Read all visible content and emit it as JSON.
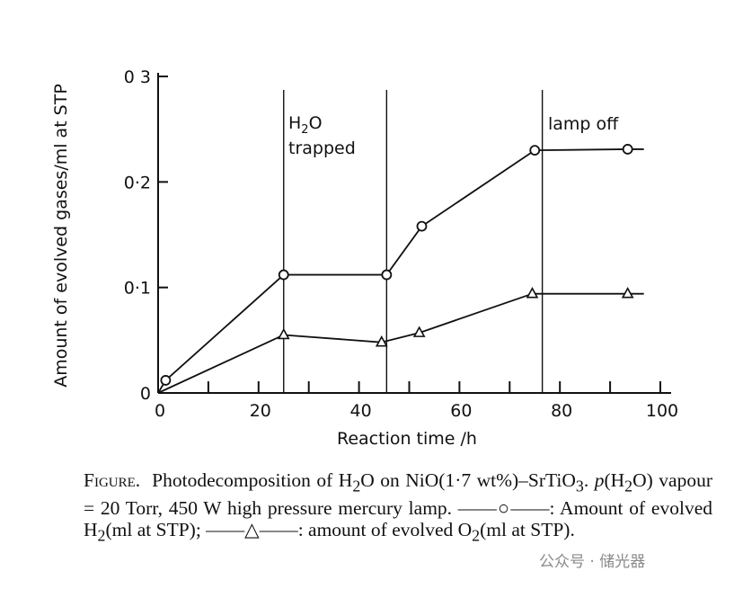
{
  "chart_data": {
    "type": "line",
    "xlabel": "Reaction time /h",
    "ylabel": "Amount of evolved gases/ml at STP",
    "xlim": [
      0,
      100
    ],
    "ylim": [
      0,
      0.3
    ],
    "x_ticks": [
      "0",
      "20",
      "40",
      "60",
      "80",
      "100"
    ],
    "y_ticks": [
      "0",
      "0·1",
      "0·2",
      "0 3"
    ],
    "grid": false,
    "series": [
      {
        "marker": "circle",
        "x": [
          0,
          1.5,
          25,
          45.5,
          52.5,
          75,
          93.5
        ],
        "y": [
          0,
          0.012,
          0.112,
          0.112,
          0.158,
          0.23,
          0.231
        ]
      },
      {
        "marker": "triangle",
        "x": [
          0,
          25,
          44.5,
          52,
          74.5,
          93.5
        ],
        "y": [
          0,
          0.055,
          0.048,
          0.057,
          0.094,
          0.094
        ]
      }
    ],
    "event_lines": [
      25,
      45.5,
      76.5
    ],
    "annotations": [
      {
        "text_main": "H",
        "sub": "2",
        "text_end": "O",
        "line2": "trapped"
      },
      {
        "text": "lamp off"
      }
    ]
  },
  "caption": {
    "label": "Figure.",
    "part1": "Photodecomposition of H",
    "sub1": "2",
    "part2": "O on NiO(1·7 wt%)–SrTiO",
    "sub2": "3",
    "part3": ". ",
    "p": "p",
    "part4": "(H",
    "sub3": "2",
    "part5": "O) vapour = 20 Torr, 450 W high pressure mercury lamp. ——○——: Amount of evolved H",
    "sub4": "2",
    "part6": "(ml at STP); ——△——: amount of evolved O",
    "sub5": "2",
    "part7": "(ml at STP)."
  },
  "watermark": "公众号 · 储光器"
}
